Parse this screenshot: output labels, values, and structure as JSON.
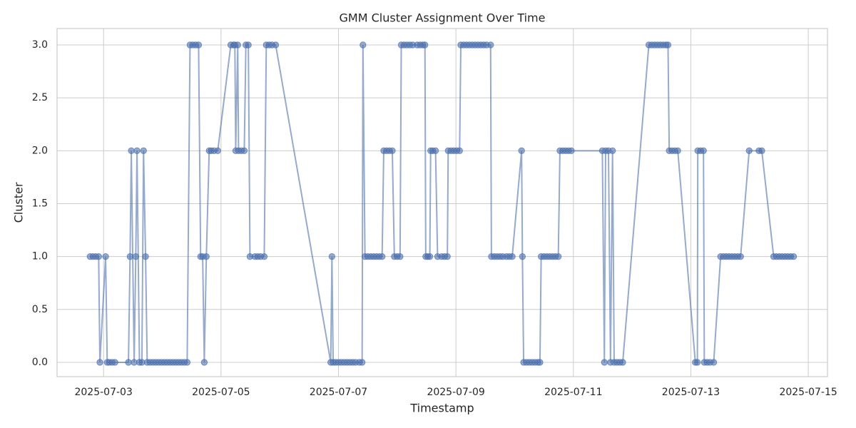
{
  "chart_data": {
    "type": "line",
    "title": "GMM Cluster Assignment Over Time",
    "x_label": "Timestamp",
    "y_label": "Cluster",
    "color": "#4c72b0",
    "grid": true,
    "markers": true,
    "xlim": [
      "2025-07-02 05:00",
      "2025-07-15 07:50"
    ],
    "xticks": [
      "2025-07-03",
      "2025-07-05",
      "2025-07-07",
      "2025-07-09",
      "2025-07-11",
      "2025-07-13",
      "2025-07-15"
    ],
    "ylim": [
      -0.135,
      3.155
    ],
    "yticks": [
      {
        "value": 0,
        "label": "0.0"
      },
      {
        "value": 0.5,
        "label": "0.5"
      },
      {
        "value": 1,
        "label": "1.0"
      },
      {
        "value": 1.5,
        "label": "1.5"
      },
      {
        "value": 2,
        "label": "2.0"
      },
      {
        "value": 2.5,
        "label": "2.5"
      },
      {
        "value": 3,
        "label": "3.0"
      }
    ],
    "x": [
      "2025-07-02 18:30",
      "2025-07-02 19:40",
      "2025-07-02 20:50",
      "2025-07-02 22:00",
      "2025-07-02 22:30",
      "2025-07-03 00:50",
      "2025-07-03 01:30",
      "2025-07-03 02:20",
      "2025-07-03 03:30",
      "2025-07-03 04:40",
      "2025-07-03 10:10",
      "2025-07-03 10:50",
      "2025-07-03 11:20",
      "2025-07-03 12:30",
      "2025-07-03 13:10",
      "2025-07-03 13:40",
      "2025-07-03 14:40",
      "2025-07-03 15:40",
      "2025-07-03 16:20",
      "2025-07-03 17:10",
      "2025-07-03 17:50",
      "2025-07-03 19:00",
      "2025-07-03 20:10",
      "2025-07-03 21:20",
      "2025-07-03 22:30",
      "2025-07-03 23:40",
      "2025-07-04 00:50",
      "2025-07-04 02:00",
      "2025-07-04 03:10",
      "2025-07-04 04:20",
      "2025-07-04 05:30",
      "2025-07-04 06:40",
      "2025-07-04 07:50",
      "2025-07-04 09:00",
      "2025-07-04 10:10",
      "2025-07-04 11:20",
      "2025-07-04 12:30",
      "2025-07-04 13:40",
      "2025-07-04 14:50",
      "2025-07-04 15:40",
      "2025-07-04 16:30",
      "2025-07-04 17:10",
      "2025-07-04 18:00",
      "2025-07-04 19:10",
      "2025-07-04 20:00",
      "2025-07-04 21:10",
      "2025-07-04 22:40",
      "2025-07-05 04:00",
      "2025-07-05 05:10",
      "2025-07-05 05:40",
      "2025-07-05 06:00",
      "2025-07-05 06:50",
      "2025-07-05 07:10",
      "2025-07-05 08:20",
      "2025-07-05 09:30",
      "2025-07-05 10:10",
      "2025-07-05 11:10",
      "2025-07-05 11:50",
      "2025-07-05 13:50",
      "2025-07-05 15:00",
      "2025-07-05 16:10",
      "2025-07-05 17:40",
      "2025-07-05 18:30",
      "2025-07-05 19:40",
      "2025-07-05 20:50",
      "2025-07-05 22:20",
      "2025-07-06 20:50",
      "2025-07-06 21:20",
      "2025-07-06 21:50",
      "2025-07-06 22:50",
      "2025-07-07 00:00",
      "2025-07-07 01:10",
      "2025-07-07 02:20",
      "2025-07-07 03:30",
      "2025-07-07 04:40",
      "2025-07-07 05:50",
      "2025-07-07 07:00",
      "2025-07-07 08:30",
      "2025-07-07 09:40",
      "2025-07-07 10:00",
      "2025-07-07 10:50",
      "2025-07-07 12:00",
      "2025-07-07 13:10",
      "2025-07-07 14:20",
      "2025-07-07 15:30",
      "2025-07-07 16:40",
      "2025-07-07 17:50",
      "2025-07-07 18:30",
      "2025-07-07 19:40",
      "2025-07-07 20:50",
      "2025-07-07 22:00",
      "2025-07-07 22:50",
      "2025-07-08 00:00",
      "2025-07-08 01:10",
      "2025-07-08 01:40",
      "2025-07-08 02:50",
      "2025-07-08 04:00",
      "2025-07-08 05:10",
      "2025-07-08 06:20",
      "2025-07-08 08:10",
      "2025-07-08 09:20",
      "2025-07-08 10:30",
      "2025-07-08 11:20",
      "2025-07-08 11:40",
      "2025-07-08 12:30",
      "2025-07-08 13:20",
      "2025-07-08 13:40",
      "2025-07-08 14:30",
      "2025-07-08 15:40",
      "2025-07-08 16:30",
      "2025-07-08 18:10",
      "2025-07-08 19:20",
      "2025-07-08 20:30",
      "2025-07-08 20:50",
      "2025-07-08 22:00",
      "2025-07-08 23:10",
      "2025-07-09 00:20",
      "2025-07-09 01:30",
      "2025-07-09 02:00",
      "2025-07-09 03:10",
      "2025-07-09 04:20",
      "2025-07-09 05:30",
      "2025-07-09 06:40",
      "2025-07-09 07:50",
      "2025-07-09 09:00",
      "2025-07-09 10:10",
      "2025-07-09 11:20",
      "2025-07-09 12:30",
      "2025-07-09 14:10",
      "2025-07-09 14:30",
      "2025-07-09 15:40",
      "2025-07-09 16:50",
      "2025-07-09 18:00",
      "2025-07-09 19:10",
      "2025-07-09 20:40",
      "2025-07-09 21:50",
      "2025-07-09 23:00",
      "2025-07-10 02:50",
      "2025-07-10 03:10",
      "2025-07-10 03:40",
      "2025-07-10 04:50",
      "2025-07-10 06:00",
      "2025-07-10 07:10",
      "2025-07-10 08:20",
      "2025-07-10 09:30",
      "2025-07-10 10:20",
      "2025-07-10 10:50",
      "2025-07-10 12:00",
      "2025-07-10 13:10",
      "2025-07-10 14:20",
      "2025-07-10 15:30",
      "2025-07-10 16:40",
      "2025-07-10 17:50",
      "2025-07-10 18:30",
      "2025-07-10 19:40",
      "2025-07-10 20:50",
      "2025-07-10 22:00",
      "2025-07-10 23:10",
      "2025-07-11 11:50",
      "2025-07-11 12:40",
      "2025-07-11 13:10",
      "2025-07-11 14:20",
      "2025-07-11 15:10",
      "2025-07-11 16:00",
      "2025-07-11 16:40",
      "2025-07-11 17:50",
      "2025-07-11 19:00",
      "2025-07-11 20:10",
      "2025-07-12 06:50",
      "2025-07-12 08:00",
      "2025-07-12 09:10",
      "2025-07-12 10:20",
      "2025-07-12 11:30",
      "2025-07-12 12:40",
      "2025-07-12 13:50",
      "2025-07-12 14:40",
      "2025-07-12 15:10",
      "2025-07-12 16:20",
      "2025-07-12 17:30",
      "2025-07-12 18:40",
      "2025-07-13 01:50",
      "2025-07-13 02:40",
      "2025-07-13 02:50",
      "2025-07-13 04:00",
      "2025-07-13 05:10",
      "2025-07-13 05:30",
      "2025-07-13 06:40",
      "2025-07-13 07:50",
      "2025-07-13 09:20",
      "2025-07-13 12:10",
      "2025-07-13 13:20",
      "2025-07-13 14:30",
      "2025-07-13 15:40",
      "2025-07-13 16:50",
      "2025-07-13 18:00",
      "2025-07-13 19:10",
      "2025-07-13 20:20",
      "2025-07-13 23:50",
      "2025-07-14 03:50",
      "2025-07-14 05:00",
      "2025-07-14 09:50",
      "2025-07-14 11:00",
      "2025-07-14 12:10",
      "2025-07-14 13:20",
      "2025-07-14 14:30",
      "2025-07-14 15:40",
      "2025-07-14 16:50",
      "2025-07-14 18:00"
    ],
    "values": [
      1,
      1,
      1,
      1,
      0,
      1,
      0,
      0,
      0,
      0,
      0,
      1,
      2,
      0,
      1,
      2,
      0,
      0,
      2,
      1,
      0,
      0,
      0,
      0,
      0,
      0,
      0,
      0,
      0,
      0,
      0,
      0,
      0,
      0,
      0,
      3,
      3,
      3,
      3,
      1,
      1,
      0,
      1,
      2,
      2,
      2,
      2,
      3,
      3,
      3,
      2,
      3,
      2,
      2,
      2,
      3,
      3,
      1,
      1,
      1,
      1,
      1,
      3,
      3,
      3,
      3,
      0,
      1,
      0,
      0,
      0,
      0,
      0,
      0,
      0,
      0,
      0,
      0,
      0,
      3,
      1,
      1,
      1,
      1,
      1,
      1,
      1,
      2,
      2,
      2,
      2,
      1,
      1,
      1,
      3,
      3,
      3,
      3,
      3,
      3,
      3,
      3,
      3,
      1,
      1,
      1,
      2,
      2,
      2,
      1,
      1,
      1,
      1,
      2,
      2,
      2,
      2,
      2,
      3,
      3,
      3,
      3,
      3,
      3,
      3,
      3,
      3,
      3,
      3,
      1,
      1,
      1,
      1,
      1,
      1,
      1,
      1,
      2,
      1,
      0,
      0,
      0,
      0,
      0,
      0,
      0,
      1,
      1,
      1,
      1,
      1,
      1,
      1,
      2,
      2,
      2,
      2,
      2,
      2,
      0,
      2,
      2,
      0,
      2,
      0,
      0,
      0,
      0,
      3,
      3,
      3,
      3,
      3,
      3,
      3,
      3,
      2,
      2,
      2,
      2,
      0,
      0,
      2,
      2,
      2,
      0,
      0,
      0,
      0,
      1,
      1,
      1,
      1,
      1,
      1,
      1,
      1,
      2,
      2,
      2,
      1,
      1,
      1,
      1,
      1,
      1,
      1,
      1
    ]
  }
}
